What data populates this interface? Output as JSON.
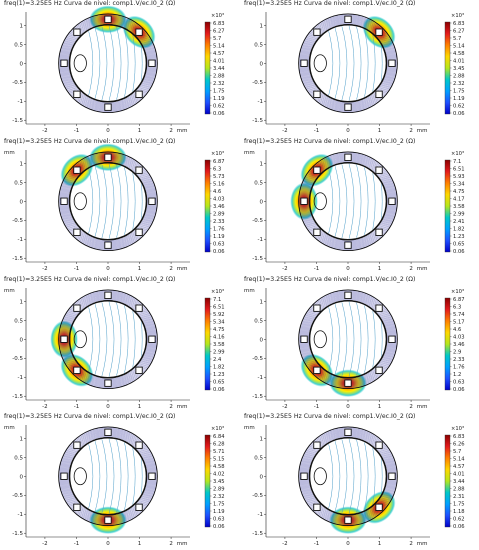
{
  "chart_data": [
    {
      "type": "heatmap",
      "title": "freq(1)=3.25E5 Hz   Curva de nivel: comp1.V/ec.I0_2 (Ω)",
      "xlabel": "mm",
      "ylabel": "mm",
      "x_ticks": [
        "-2",
        "-1",
        "0",
        "1",
        "2"
      ],
      "y_ticks": [
        "1",
        "0.5",
        "0",
        "-0.5",
        "-1",
        "-1.5"
      ],
      "colorbar_unit": "×10³",
      "colorbar_ticks": [
        "6.83",
        "6.27",
        "5.7",
        "5.14",
        "4.57",
        "4.01",
        "3.44",
        "2.88",
        "2.32",
        "1.75",
        "1.19",
        "0.62",
        "0.06"
      ],
      "hot_spots": [
        "top",
        "top-right"
      ],
      "x_unit_label_on_axis": true,
      "y_unit_label_on_axis": false
    },
    {
      "type": "heatmap",
      "title": "freq(1)=3.25E5 Hz   Curva de nivel: comp1.V/ec.I0_2 (Ω)",
      "xlabel": "mm",
      "ylabel": "mm",
      "x_ticks": [
        "-2",
        "-1",
        "0",
        "1",
        "2"
      ],
      "y_ticks": [
        "1",
        "0.5",
        "0",
        "-0.5",
        "-1",
        "-1.5"
      ],
      "colorbar_unit": "×10³",
      "colorbar_ticks": [
        "6.83",
        "6.27",
        "5.7",
        "5.14",
        "4.58",
        "4.01",
        "3.45",
        "2.88",
        "2.32",
        "1.75",
        "1.19",
        "0.62",
        "0.06"
      ],
      "hot_spots": [
        "top-right"
      ],
      "x_unit_label_on_axis": true,
      "y_unit_label_on_axis": false
    },
    {
      "type": "heatmap",
      "title": "freq(1)=3.25E5 Hz   Curva de nivel: comp1.V/ec.I0_2 (Ω)",
      "xlabel": "mm",
      "ylabel": "mm",
      "x_ticks": [
        "-2",
        "-1",
        "0",
        "1",
        "2"
      ],
      "y_ticks": [
        "1",
        "0.5",
        "0",
        "-0.5",
        "-1",
        "-1.5"
      ],
      "colorbar_unit": "×10³",
      "colorbar_ticks": [
        "6.87",
        "6.3",
        "5.73",
        "5.16",
        "4.6",
        "4.03",
        "3.46",
        "2.89",
        "2.33",
        "1.76",
        "1.19",
        "0.63",
        "0.06"
      ],
      "hot_spots": [
        "top-left",
        "top"
      ],
      "x_unit_label_on_axis": true,
      "y_unit_label_on_axis": true
    },
    {
      "type": "heatmap",
      "title": "freq(1)=3.25E5 Hz   Curva de nivel: comp1.V/ec.I0_2 (Ω)",
      "xlabel": "mm",
      "ylabel": "mm",
      "x_ticks": [
        "-2",
        "-1",
        "0",
        "1",
        "2"
      ],
      "y_ticks": [
        "1",
        "0.5",
        "0",
        "-0.5",
        "-1",
        "-1.5"
      ],
      "colorbar_unit": "×10³",
      "colorbar_ticks": [
        "7.1",
        "6.51",
        "5.93",
        "5.34",
        "4.75",
        "4.17",
        "3.58",
        "2.99",
        "2.41",
        "1.82",
        "1.23",
        "0.65",
        "0.06"
      ],
      "hot_spots": [
        "left",
        "top-left"
      ],
      "x_unit_label_on_axis": true,
      "y_unit_label_on_axis": true
    },
    {
      "type": "heatmap",
      "title": "freq(1)=3.25E5 Hz   Curva de nivel: comp1.V/ec.I0_2 (Ω)",
      "xlabel": "mm",
      "ylabel": "mm",
      "x_ticks": [
        "-2",
        "-1",
        "0",
        "1",
        "2"
      ],
      "y_ticks": [
        "1",
        "0.5",
        "0",
        "-0.5",
        "-1",
        "-1.5"
      ],
      "colorbar_unit": "×10³",
      "colorbar_ticks": [
        "7.1",
        "6.51",
        "5.92",
        "5.34",
        "4.75",
        "4.16",
        "3.58",
        "2.99",
        "2.4",
        "1.82",
        "1.23",
        "0.65",
        "0.06"
      ],
      "hot_spots": [
        "bottom-left",
        "left"
      ],
      "x_unit_label_on_axis": true,
      "y_unit_label_on_axis": true
    },
    {
      "type": "heatmap",
      "title": "freq(1)=3.25E5 Hz   Curva de nivel: comp1.V/ec.I0_2 (Ω)",
      "xlabel": "mm",
      "ylabel": "mm",
      "x_ticks": [
        "-2",
        "-1",
        "0",
        "1",
        "2"
      ],
      "y_ticks": [
        "1",
        "0.5",
        "0",
        "-0.5",
        "-1",
        "-1.5"
      ],
      "colorbar_unit": "×10³",
      "colorbar_ticks": [
        "6.87",
        "6.3",
        "5.74",
        "5.17",
        "4.6",
        "4.03",
        "3.46",
        "2.9",
        "2.33",
        "1.76",
        "1.2",
        "0.63",
        "0.06"
      ],
      "hot_spots": [
        "bottom-left",
        "bottom"
      ],
      "x_unit_label_on_axis": true,
      "y_unit_label_on_axis": true
    },
    {
      "type": "heatmap",
      "title": "freq(1)=3.25E5 Hz   Curva de nivel: comp1.V/ec.I0_2 (Ω)",
      "xlabel": "mm",
      "ylabel": "mm",
      "x_ticks": [
        "-2",
        "-1",
        "0",
        "1",
        "2"
      ],
      "y_ticks": [
        "1",
        "0.5",
        "0",
        "-0.5",
        "-1",
        "-1.5"
      ],
      "colorbar_unit": "×10³",
      "colorbar_ticks": [
        "6.84",
        "6.28",
        "5.71",
        "5.15",
        "4.58",
        "4.02",
        "3.45",
        "2.89",
        "2.32",
        "1.75",
        "1.19",
        "0.63",
        "0.06"
      ],
      "hot_spots": [
        "bottom"
      ],
      "x_unit_label_on_axis": true,
      "y_unit_label_on_axis": true
    },
    {
      "type": "heatmap",
      "title": "freq(1)=3.25E5 Hz   Curva de nivel: comp1.V/ec.I0_2 (Ω)",
      "xlabel": "mm",
      "ylabel": "mm",
      "x_ticks": [
        "-2",
        "-1",
        "0",
        "1",
        "2"
      ],
      "y_ticks": [
        "1",
        "0.5",
        "0",
        "-0.5",
        "-1",
        "-1.5"
      ],
      "colorbar_unit": "×10³",
      "colorbar_ticks": [
        "6.83",
        "6.26",
        "5.7",
        "5.14",
        "4.57",
        "4.01",
        "3.44",
        "2.88",
        "2.31",
        "1.75",
        "1.18",
        "0.62",
        "0.06"
      ],
      "hot_spots": [
        "bottom-right",
        "bottom"
      ],
      "x_unit_label_on_axis": true,
      "y_unit_label_on_axis": true
    }
  ],
  "colors": {
    "axis": "#222222",
    "contour_inner": "#4d9ec9",
    "contour_edge": "#1b1b8f",
    "boundary": "#111111",
    "colorbar": [
      "#8b0000",
      "#e31a1c",
      "#ff7f00",
      "#ffd700",
      "#b5e61d",
      "#00c8c8",
      "#00a0ff",
      "#1e50ff",
      "#0000c8"
    ]
  }
}
